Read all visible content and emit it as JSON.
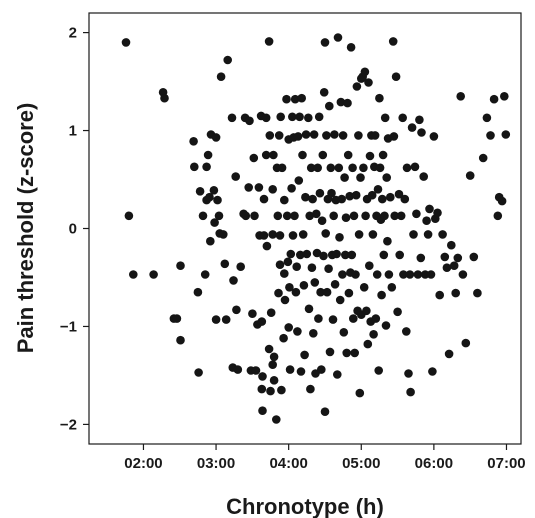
{
  "chart_data": {
    "type": "scatter",
    "xlabel": "Chronotype (h)",
    "ylabel": "Pain threshold (z-score)",
    "xlim": [
      1.25,
      7.2
    ],
    "ylim": [
      -2.2,
      2.2
    ],
    "xticks": [
      2,
      3,
      4,
      5,
      6,
      7
    ],
    "xtick_labels": [
      "02:00",
      "03:00",
      "04:00",
      "05:00",
      "06:00",
      "07:00"
    ],
    "yticks": [
      -2,
      -1,
      0,
      1,
      2
    ],
    "ytick_labels": [
      "−2",
      "−1",
      "0",
      "1",
      "2"
    ],
    "grid": false,
    "legend": "none",
    "marker_color": "#151515",
    "points": [
      [
        1.76,
        1.9
      ],
      [
        1.8,
        0.13
      ],
      [
        1.86,
        -0.47
      ],
      [
        2.14,
        -0.47
      ],
      [
        2.27,
        1.39
      ],
      [
        2.29,
        1.33
      ],
      [
        2.42,
        -0.92
      ],
      [
        2.46,
        -0.92
      ],
      [
        2.51,
        -0.38
      ],
      [
        2.51,
        -1.14
      ],
      [
        2.69,
        0.89
      ],
      [
        2.7,
        0.63
      ],
      [
        2.75,
        -0.65
      ],
      [
        2.76,
        -1.47
      ],
      [
        2.78,
        0.38
      ],
      [
        2.82,
        0.13
      ],
      [
        2.85,
        -0.47
      ],
      [
        2.87,
        0.63
      ],
      [
        2.87,
        0.29
      ],
      [
        2.89,
        0.75
      ],
      [
        2.91,
        0.32
      ],
      [
        2.92,
        -0.13
      ],
      [
        2.93,
        0.96
      ],
      [
        2.97,
        0.39
      ],
      [
        2.98,
        0.06
      ],
      [
        3.0,
        0.93
      ],
      [
        3.0,
        -0.93
      ],
      [
        3.02,
        0.29
      ],
      [
        3.04,
        0.13
      ],
      [
        3.05,
        -0.05
      ],
      [
        3.07,
        1.55
      ],
      [
        3.1,
        -0.06
      ],
      [
        3.12,
        -0.36
      ],
      [
        3.14,
        -0.93
      ],
      [
        3.16,
        1.72
      ],
      [
        3.22,
        1.13
      ],
      [
        3.23,
        -1.42
      ],
      [
        3.24,
        -0.53
      ],
      [
        3.27,
        0.53
      ],
      [
        3.28,
        -0.83
      ],
      [
        3.3,
        -1.44
      ],
      [
        3.34,
        -0.39
      ],
      [
        3.38,
        0.15
      ],
      [
        3.4,
        1.13
      ],
      [
        3.41,
        0.13
      ],
      [
        3.45,
        0.42
      ],
      [
        3.46,
        1.1
      ],
      [
        3.48,
        -1.45
      ],
      [
        3.5,
        -0.87
      ],
      [
        3.52,
        0.72
      ],
      [
        3.53,
        0.13
      ],
      [
        3.55,
        -1.45
      ],
      [
        3.57,
        -0.98
      ],
      [
        3.59,
        0.42
      ],
      [
        3.6,
        -0.07
      ],
      [
        3.62,
        1.15
      ],
      [
        3.63,
        -1.64
      ],
      [
        3.63,
        -0.95
      ],
      [
        3.64,
        -1.86
      ],
      [
        3.64,
        -1.51
      ],
      [
        3.66,
        0.3
      ],
      [
        3.66,
        -0.07
      ],
      [
        3.69,
        1.13
      ],
      [
        3.69,
        0.75
      ],
      [
        3.7,
        -0.18
      ],
      [
        3.73,
        1.91
      ],
      [
        3.73,
        -1.23
      ],
      [
        3.74,
        0.95
      ],
      [
        3.75,
        -1.66
      ],
      [
        3.76,
        -0.86
      ],
      [
        3.78,
        0.4
      ],
      [
        3.78,
        -0.06
      ],
      [
        3.78,
        -1.39
      ],
      [
        3.79,
        0.75
      ],
      [
        3.8,
        -1.31
      ],
      [
        3.8,
        -1.55
      ],
      [
        3.83,
        -1.95
      ],
      [
        3.84,
        0.62
      ],
      [
        3.85,
        0.13
      ],
      [
        3.86,
        -0.66
      ],
      [
        3.87,
        0.95
      ],
      [
        3.88,
        -0.07
      ],
      [
        3.88,
        -0.37
      ],
      [
        3.89,
        1.14
      ],
      [
        3.9,
        -1.65
      ],
      [
        3.91,
        0.62
      ],
      [
        3.93,
        -1.12
      ],
      [
        3.94,
        0.29
      ],
      [
        3.94,
        -0.46
      ],
      [
        3.95,
        -0.73
      ],
      [
        3.97,
        1.32
      ],
      [
        3.98,
        0.13
      ],
      [
        3.99,
        -0.34
      ],
      [
        4.0,
        0.91
      ],
      [
        4.0,
        -1.01
      ],
      [
        4.01,
        -0.6
      ],
      [
        4.02,
        -1.44
      ],
      [
        4.03,
        -0.26
      ],
      [
        4.04,
        0.41
      ],
      [
        4.05,
        1.14
      ],
      [
        4.06,
        -0.07
      ],
      [
        4.07,
        0.93
      ],
      [
        4.08,
        0.13
      ],
      [
        4.09,
        1.32
      ],
      [
        4.1,
        -0.65
      ],
      [
        4.11,
        -0.39
      ],
      [
        4.12,
        -1.05
      ],
      [
        4.13,
        0.94
      ],
      [
        4.14,
        0.49
      ],
      [
        4.15,
        1.14
      ],
      [
        4.16,
        -0.27
      ],
      [
        4.17,
        -1.46
      ],
      [
        4.18,
        1.33
      ],
      [
        4.19,
        0.75
      ],
      [
        4.2,
        -0.06
      ],
      [
        4.21,
        -0.58
      ],
      [
        4.22,
        -1.29
      ],
      [
        4.23,
        0.32
      ],
      [
        4.24,
        0.96
      ],
      [
        4.25,
        -0.26
      ],
      [
        4.27,
        1.13
      ],
      [
        4.28,
        -0.82
      ],
      [
        4.29,
        0.13
      ],
      [
        4.3,
        -1.64
      ],
      [
        4.31,
        0.62
      ],
      [
        4.32,
        -0.4
      ],
      [
        4.33,
        0.3
      ],
      [
        4.34,
        -1.07
      ],
      [
        4.35,
        0.96
      ],
      [
        4.36,
        -0.55
      ],
      [
        4.37,
        -1.48
      ],
      [
        4.38,
        0.15
      ],
      [
        4.39,
        -0.25
      ],
      [
        4.4,
        0.62
      ],
      [
        4.41,
        -0.92
      ],
      [
        4.42,
        1.14
      ],
      [
        4.43,
        0.36
      ],
      [
        4.44,
        -0.65
      ],
      [
        4.45,
        -1.44
      ],
      [
        4.46,
        0.08
      ],
      [
        4.47,
        0.75
      ],
      [
        4.48,
        -0.28
      ],
      [
        4.49,
        1.39
      ],
      [
        4.5,
        1.9
      ],
      [
        4.5,
        -1.87
      ],
      [
        4.51,
        -0.05
      ],
      [
        4.52,
        0.95
      ],
      [
        4.53,
        -0.65
      ],
      [
        4.54,
        0.3
      ],
      [
        4.55,
        -0.41
      ],
      [
        4.56,
        1.25
      ],
      [
        4.57,
        -1.26
      ],
      [
        4.58,
        0.62
      ],
      [
        4.59,
        0.36
      ],
      [
        4.6,
        -0.27
      ],
      [
        4.61,
        -0.93
      ],
      [
        4.62,
        0.13
      ],
      [
        4.63,
        0.96
      ],
      [
        4.64,
        -0.57
      ],
      [
        4.65,
        0.29
      ],
      [
        4.66,
        -0.26
      ],
      [
        4.67,
        -1.49
      ],
      [
        4.68,
        1.95
      ],
      [
        4.69,
        0.62
      ],
      [
        4.7,
        -0.09
      ],
      [
        4.71,
        -0.73
      ],
      [
        4.72,
        1.29
      ],
      [
        4.73,
        0.3
      ],
      [
        4.74,
        -0.47
      ],
      [
        4.75,
        0.95
      ],
      [
        4.76,
        -1.06
      ],
      [
        4.77,
        0.52
      ],
      [
        4.78,
        -0.27
      ],
      [
        4.79,
        0.11
      ],
      [
        4.8,
        -1.27
      ],
      [
        4.81,
        1.28
      ],
      [
        4.82,
        0.75
      ],
      [
        4.83,
        -0.66
      ],
      [
        4.84,
        0.33
      ],
      [
        4.85,
        -0.45
      ],
      [
        4.86,
        1.85
      ],
      [
        4.87,
        -0.27
      ],
      [
        4.88,
        0.62
      ],
      [
        4.89,
        -0.92
      ],
      [
        4.9,
        0.13
      ],
      [
        4.91,
        -1.27
      ],
      [
        4.92,
        -0.47
      ],
      [
        4.93,
        0.34
      ],
      [
        4.94,
        1.45
      ],
      [
        4.95,
        -0.84
      ],
      [
        4.96,
        0.95
      ],
      [
        4.97,
        -0.06
      ],
      [
        4.98,
        -1.68
      ],
      [
        4.99,
        0.52
      ],
      [
        5.0,
        1.53
      ],
      [
        5.0,
        -0.88
      ],
      [
        5.02,
        1.55
      ],
      [
        5.03,
        0.62
      ],
      [
        5.04,
        -0.6
      ],
      [
        5.05,
        1.6
      ],
      [
        5.06,
        0.13
      ],
      [
        5.07,
        -0.84
      ],
      [
        5.08,
        0.3
      ],
      [
        5.09,
        -1.18
      ],
      [
        5.1,
        1.49
      ],
      [
        5.11,
        -0.38
      ],
      [
        5.12,
        0.74
      ],
      [
        5.13,
        -0.95
      ],
      [
        5.14,
        0.95
      ],
      [
        5.15,
        0.34
      ],
      [
        5.16,
        -0.06
      ],
      [
        5.17,
        -1.08
      ],
      [
        5.18,
        0.63
      ],
      [
        5.19,
        0.95
      ],
      [
        5.2,
        -0.92
      ],
      [
        5.21,
        0.13
      ],
      [
        5.22,
        -0.47
      ],
      [
        5.23,
        0.4
      ],
      [
        5.24,
        -1.45
      ],
      [
        5.25,
        1.33
      ],
      [
        5.26,
        0.62
      ],
      [
        5.27,
        0.09
      ],
      [
        5.28,
        -0.68
      ],
      [
        5.29,
        0.3
      ],
      [
        5.3,
        0.75
      ],
      [
        5.31,
        -0.27
      ],
      [
        5.32,
        0.13
      ],
      [
        5.33,
        1.13
      ],
      [
        5.34,
        -0.99
      ],
      [
        5.35,
        0.52
      ],
      [
        5.36,
        -0.13
      ],
      [
        5.37,
        0.92
      ],
      [
        5.38,
        -0.47
      ],
      [
        5.4,
        0.32
      ],
      [
        5.42,
        -0.6
      ],
      [
        5.44,
        1.91
      ],
      [
        5.45,
        0.94
      ],
      [
        5.46,
        0.13
      ],
      [
        5.48,
        1.55
      ],
      [
        5.5,
        -0.85
      ],
      [
        5.52,
        0.35
      ],
      [
        5.53,
        -0.27
      ],
      [
        5.55,
        0.13
      ],
      [
        5.57,
        1.13
      ],
      [
        5.58,
        -0.47
      ],
      [
        5.6,
        0.3
      ],
      [
        5.62,
        -1.05
      ],
      [
        5.63,
        0.62
      ],
      [
        5.65,
        -1.48
      ],
      [
        5.67,
        -0.47
      ],
      [
        5.68,
        -1.67
      ],
      [
        5.7,
        1.03
      ],
      [
        5.72,
        -0.06
      ],
      [
        5.74,
        0.63
      ],
      [
        5.76,
        0.15
      ],
      [
        5.78,
        -0.47
      ],
      [
        5.8,
        1.11
      ],
      [
        5.82,
        -0.3
      ],
      [
        5.83,
        0.98
      ],
      [
        5.86,
        0.53
      ],
      [
        5.88,
        -0.47
      ],
      [
        5.9,
        0.08
      ],
      [
        5.92,
        -0.06
      ],
      [
        5.94,
        0.2
      ],
      [
        5.96,
        -0.47
      ],
      [
        5.98,
        -1.46
      ],
      [
        6.0,
        0.94
      ],
      [
        6.02,
        0.1
      ],
      [
        6.05,
        0.16
      ],
      [
        6.08,
        -0.68
      ],
      [
        6.12,
        -0.06
      ],
      [
        6.15,
        -0.29
      ],
      [
        6.18,
        -0.4
      ],
      [
        6.21,
        -1.28
      ],
      [
        6.24,
        -0.17
      ],
      [
        6.28,
        -0.38
      ],
      [
        6.3,
        -0.66
      ],
      [
        6.33,
        -0.3
      ],
      [
        6.37,
        1.35
      ],
      [
        6.4,
        -0.47
      ],
      [
        6.44,
        -1.17
      ],
      [
        6.5,
        0.54
      ],
      [
        6.55,
        -0.29
      ],
      [
        6.6,
        -0.66
      ],
      [
        6.68,
        0.72
      ],
      [
        6.73,
        1.13
      ],
      [
        6.78,
        0.95
      ],
      [
        6.83,
        1.32
      ],
      [
        6.88,
        0.13
      ],
      [
        6.9,
        0.32
      ],
      [
        6.94,
        0.28
      ],
      [
        6.97,
        1.35
      ],
      [
        6.99,
        0.96
      ]
    ]
  }
}
